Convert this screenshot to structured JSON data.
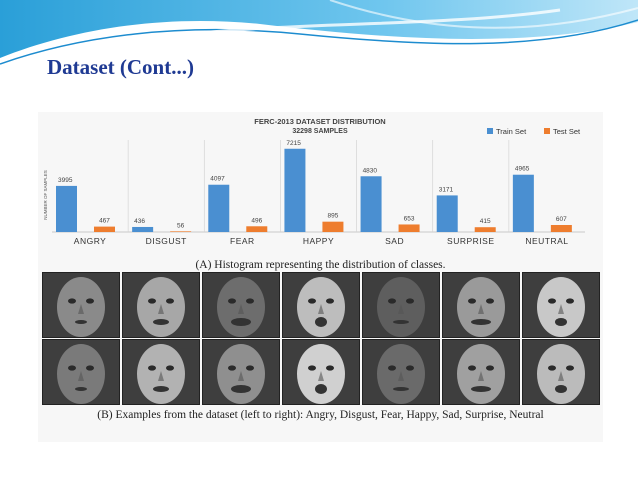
{
  "slide": {
    "title": "Dataset (Cont...)"
  },
  "colors": {
    "train": "#4a8fd1",
    "test": "#ee7d2e",
    "title_blue": "#1f3a93"
  },
  "chart_data": {
    "type": "bar",
    "title": "FERC-2013 DATASET DISTRIBUTION",
    "subtitle": "32298 SAMPLES",
    "ylabel": "NUMBER OF SAMPLES",
    "xlabel": "",
    "legend_position": "top-right",
    "categories": [
      "ANGRY",
      "DISGUST",
      "FEAR",
      "HAPPY",
      "SAD",
      "SURPRISE",
      "NEUTRAL"
    ],
    "series": [
      {
        "name": "Train Set",
        "values": [
          3995,
          436,
          4097,
          7215,
          4830,
          3171,
          4965
        ]
      },
      {
        "name": "Test Set",
        "values": [
          467,
          56,
          496,
          895,
          653,
          415,
          607
        ]
      }
    ],
    "ylim": [
      0,
      7800
    ]
  },
  "figure": {
    "caption_a": "(A) Histogram representing the distribution of classes.",
    "caption_b": "(B) Examples from the dataset (left to right): Angry, Disgust, Fear, Happy, Sad, Surprise, Neutral"
  }
}
